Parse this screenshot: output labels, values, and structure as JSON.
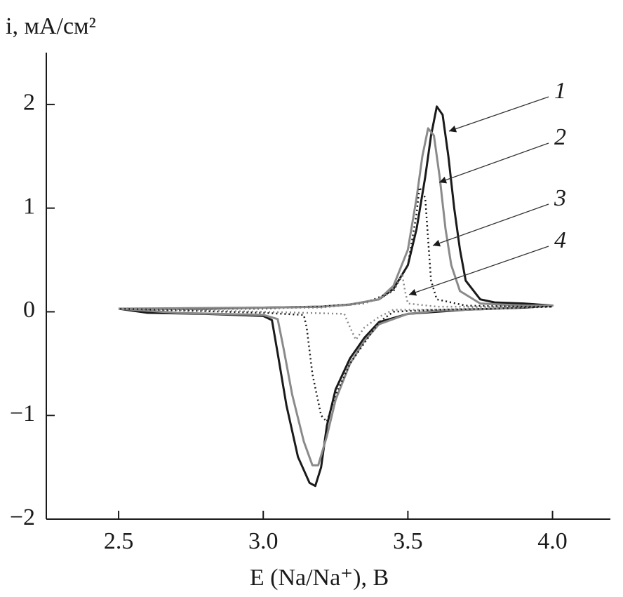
{
  "chart_data": {
    "type": "line",
    "y_label": "i, мА/см²",
    "x_label": "E (Na/Na⁺), В",
    "xlim": [
      2.25,
      4.2
    ],
    "ylim": [
      -2,
      2.5
    ],
    "xticks": [
      2.5,
      {
        "value": 3,
        "label": "3.0"
      },
      3.5,
      {
        "value": 4,
        "label": "4.0"
      }
    ],
    "yticks": [
      {
        "value": -2,
        "label": "−2"
      },
      {
        "value": -1,
        "label": "−1"
      },
      0,
      1,
      2
    ],
    "series": [
      {
        "name": "1",
        "color": "#1a1a1a",
        "dash": "solid",
        "x": [
          2.5,
          2.6,
          2.8,
          3.0,
          3.2,
          3.3,
          3.4,
          3.45,
          3.5,
          3.53,
          3.56,
          3.58,
          3.6,
          3.62,
          3.64,
          3.66,
          3.68,
          3.7,
          3.75,
          3.8,
          3.9,
          4.0,
          3.9,
          3.8,
          3.7,
          3.6,
          3.5,
          3.4,
          3.35,
          3.3,
          3.25,
          3.22,
          3.2,
          3.18,
          3.16,
          3.12,
          3.08,
          3.05,
          3.03,
          3.0,
          2.8,
          2.6,
          2.55,
          2.5
        ],
        "values": [
          0.03,
          0.03,
          0.03,
          0.04,
          0.05,
          0.07,
          0.12,
          0.22,
          0.45,
          0.8,
          1.3,
          1.7,
          1.98,
          1.9,
          1.5,
          1.0,
          0.6,
          0.3,
          0.12,
          0.09,
          0.08,
          0.06,
          0.04,
          0.03,
          0.02,
          0.0,
          -0.02,
          -0.1,
          -0.25,
          -0.45,
          -0.75,
          -1.1,
          -1.5,
          -1.68,
          -1.65,
          -1.4,
          -0.9,
          -0.4,
          -0.08,
          -0.04,
          -0.02,
          -0.01,
          0.01,
          0.03
        ]
      },
      {
        "name": "2",
        "color": "#8a8a8a",
        "dash": "solid",
        "x": [
          2.5,
          3.0,
          3.2,
          3.3,
          3.4,
          3.45,
          3.5,
          3.53,
          3.55,
          3.57,
          3.59,
          3.61,
          3.63,
          3.65,
          3.68,
          3.75,
          3.9,
          4.0,
          3.8,
          3.6,
          3.5,
          3.4,
          3.35,
          3.3,
          3.25,
          3.22,
          3.19,
          3.17,
          3.14,
          3.1,
          3.07,
          3.05,
          3.0,
          2.7,
          2.5
        ],
        "values": [
          0.03,
          0.04,
          0.05,
          0.07,
          0.12,
          0.25,
          0.6,
          1.1,
          1.5,
          1.77,
          1.7,
          1.3,
          0.8,
          0.45,
          0.2,
          0.08,
          0.06,
          0.06,
          0.03,
          0.01,
          -0.02,
          -0.12,
          -0.28,
          -0.5,
          -0.85,
          -1.2,
          -1.48,
          -1.48,
          -1.25,
          -0.8,
          -0.35,
          -0.07,
          -0.03,
          -0.01,
          0.03
        ]
      },
      {
        "name": "3",
        "color": "#1a1a1a",
        "dash": "dotted",
        "x": [
          2.5,
          3.0,
          3.2,
          3.35,
          3.45,
          3.5,
          3.53,
          3.54,
          3.56,
          3.57,
          3.58,
          3.6,
          3.7,
          3.9,
          4.0,
          3.8,
          3.6,
          3.45,
          3.4,
          3.35,
          3.3,
          3.25,
          3.22,
          3.2,
          3.17,
          3.15,
          3.14,
          3.0,
          2.5
        ],
        "values": [
          0.03,
          0.03,
          0.05,
          0.08,
          0.2,
          0.45,
          0.95,
          1.2,
          1.1,
          0.7,
          0.3,
          0.12,
          0.06,
          0.05,
          0.05,
          0.03,
          0.02,
          0.0,
          -0.1,
          -0.3,
          -0.5,
          -0.8,
          -1.06,
          -1.0,
          -0.6,
          -0.15,
          -0.03,
          -0.01,
          0.03
        ]
      },
      {
        "name": "4",
        "color": "#8a8a8a",
        "dash": "dotted",
        "x": [
          2.5,
          3.2,
          3.35,
          3.42,
          3.46,
          3.48,
          3.49,
          3.5,
          3.6,
          3.8,
          4.0,
          3.8,
          3.6,
          3.45,
          3.4,
          3.35,
          3.32,
          3.3,
          3.28,
          3.0,
          2.5
        ],
        "values": [
          0.03,
          0.04,
          0.08,
          0.15,
          0.25,
          0.37,
          0.2,
          0.08,
          0.05,
          0.05,
          0.06,
          0.04,
          0.02,
          0.02,
          -0.05,
          -0.15,
          -0.27,
          -0.15,
          -0.02,
          0.0,
          0.03
        ]
      }
    ]
  }
}
